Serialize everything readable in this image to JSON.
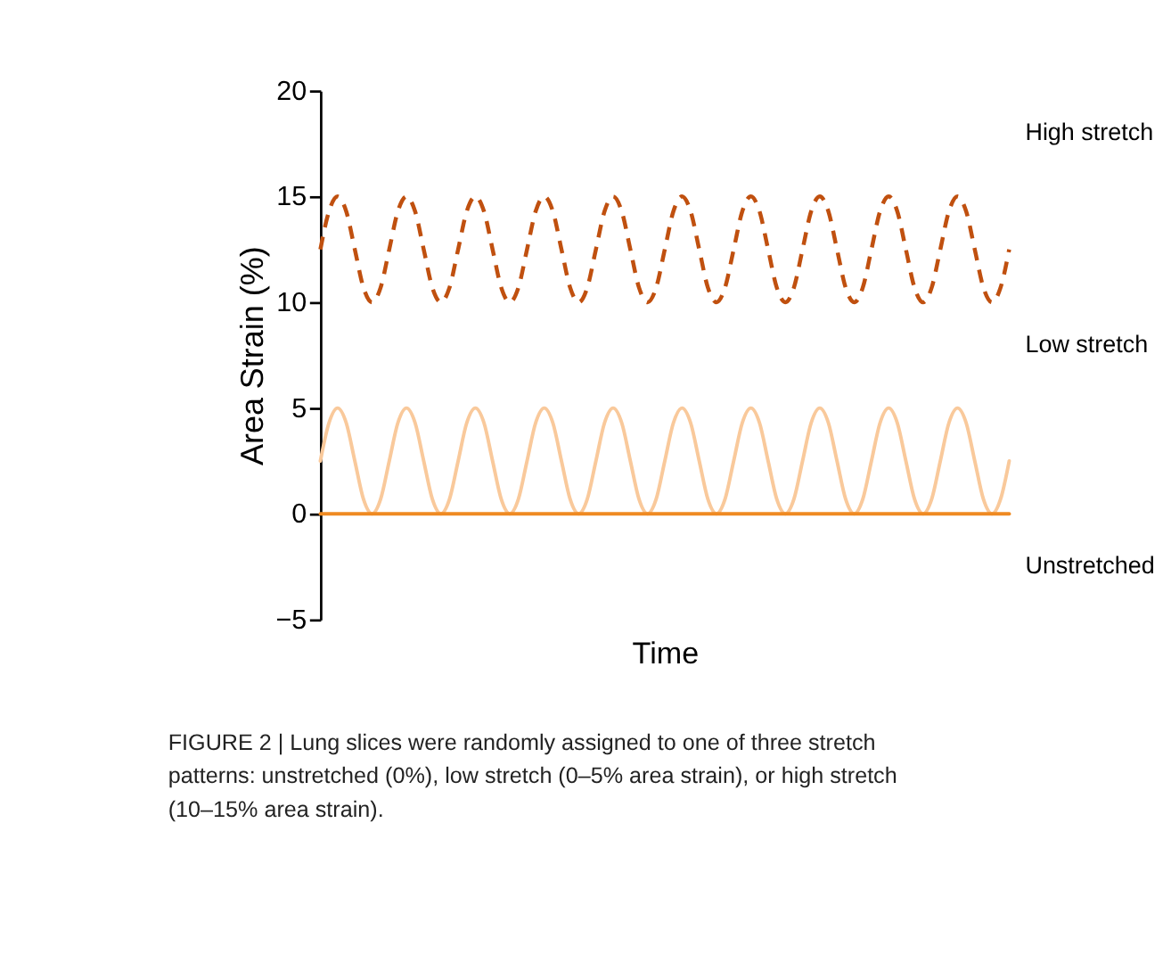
{
  "chart_data": {
    "type": "line",
    "categories": [
      null,
      null,
      null,
      null,
      null,
      null,
      null,
      null,
      null,
      null,
      null,
      null,
      null,
      null,
      null,
      null,
      null,
      null,
      null,
      null,
      null,
      null,
      null,
      null,
      null,
      null,
      null,
      null,
      null,
      null,
      null,
      null,
      null,
      null,
      null,
      null,
      null,
      null,
      null,
      null,
      null,
      null,
      null,
      null,
      null,
      null,
      null,
      null,
      null,
      null,
      null,
      null,
      null,
      null,
      null,
      null,
      null,
      null,
      null,
      null,
      null,
      null,
      null,
      null,
      null,
      null,
      null,
      null,
      null,
      null,
      null,
      null,
      null,
      null,
      null,
      null,
      null,
      null,
      null,
      null,
      null
    ],
    "xlabel": "Time",
    "ylabel": "Area Strain (%)",
    "ylim": [
      -5,
      20
    ],
    "yticks": [
      -5,
      0,
      5,
      10,
      15,
      20
    ],
    "tick_labels": "y",
    "grid": false,
    "legend": false,
    "marker": "none",
    "series": [
      {
        "name": "High stretch",
        "color": "#c0500f",
        "line_style": "dashed",
        "values": [
          12.5,
          14.3,
          15,
          14.3,
          12.5,
          10.7,
          10,
          10.7,
          12.5,
          14.3,
          15,
          14.3,
          12.5,
          10.7,
          10,
          10.7,
          12.5,
          14.3,
          15,
          14.3,
          12.5,
          10.7,
          10,
          10.7,
          12.5,
          14.3,
          15,
          14.3,
          12.5,
          10.7,
          10,
          10.7,
          12.5,
          14.3,
          15,
          14.3,
          12.5,
          10.7,
          10,
          10.7,
          12.5,
          14.3,
          15,
          14.3,
          12.5,
          10.7,
          10,
          10.7,
          12.5,
          14.3,
          15,
          14.3,
          12.5,
          10.7,
          10,
          10.7,
          12.5,
          14.3,
          15,
          14.3,
          12.5,
          10.7,
          10,
          10.7,
          12.5,
          14.3,
          15,
          14.3,
          12.5,
          10.7,
          10,
          10.7,
          12.5,
          14.3,
          15,
          14.3,
          12.5,
          10.7,
          10,
          10.7,
          12.5
        ]
      },
      {
        "name": "Low stretch",
        "color": "#f9c99b",
        "line_style": "solid",
        "values": [
          2.5,
          4.3,
          5,
          4.3,
          2.5,
          0.7,
          0,
          0.7,
          2.5,
          4.3,
          5,
          4.3,
          2.5,
          0.7,
          0,
          0.7,
          2.5,
          4.3,
          5,
          4.3,
          2.5,
          0.7,
          0,
          0.7,
          2.5,
          4.3,
          5,
          4.3,
          2.5,
          0.7,
          0,
          0.7,
          2.5,
          4.3,
          5,
          4.3,
          2.5,
          0.7,
          0,
          0.7,
          2.5,
          4.3,
          5,
          4.3,
          2.5,
          0.7,
          0,
          0.7,
          2.5,
          4.3,
          5,
          4.3,
          2.5,
          0.7,
          0,
          0.7,
          2.5,
          4.3,
          5,
          4.3,
          2.5,
          0.7,
          0,
          0.7,
          2.5,
          4.3,
          5,
          4.3,
          2.5,
          0.7,
          0,
          0.7,
          2.5,
          4.3,
          5,
          4.3,
          2.5,
          0.7,
          0,
          0.7,
          2.5
        ]
      },
      {
        "name": "Unstretched",
        "color": "#ef8a22",
        "line_style": "solid",
        "values": [
          0,
          0,
          0,
          0,
          0,
          0,
          0,
          0,
          0,
          0,
          0,
          0,
          0,
          0,
          0,
          0,
          0,
          0,
          0,
          0,
          0,
          0,
          0,
          0,
          0,
          0,
          0,
          0,
          0,
          0,
          0,
          0,
          0,
          0,
          0,
          0,
          0,
          0,
          0,
          0,
          0,
          0,
          0,
          0,
          0,
          0,
          0,
          0,
          0,
          0,
          0,
          0,
          0,
          0,
          0,
          0,
          0,
          0,
          0,
          0,
          0,
          0,
          0,
          0,
          0,
          0,
          0,
          0,
          0,
          0,
          0,
          0,
          0,
          0,
          0,
          0,
          0,
          0,
          0,
          0,
          0
        ]
      }
    ],
    "annotations": [
      "FIGURE 2 | Lung slices were randomly assigned to one of three stretch patterns: unstretched (0%), low stretch (0–5% area strain), or high stretch (10–15% area strain)."
    ]
  }
}
